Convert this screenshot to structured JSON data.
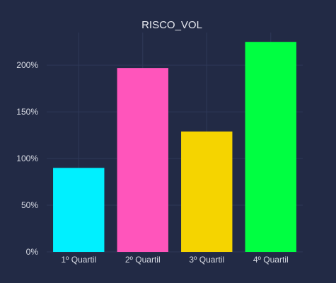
{
  "chart_data": {
    "type": "bar",
    "title": "RISCO_VOL",
    "xlabel": "",
    "ylabel": "",
    "categories": [
      "1º Quartil",
      "2º Quartil",
      "3º Quartil",
      "4º Quartil"
    ],
    "values": [
      90,
      197,
      129,
      225
    ],
    "value_format": "percent",
    "ylim": [
      0,
      235
    ],
    "yticks": [
      0,
      50,
      100,
      150,
      200
    ],
    "ytick_labels": [
      "0%",
      "50%",
      "100%",
      "150%",
      "200%"
    ],
    "grid": true,
    "colors": [
      "#00f0ff",
      "#ff55bb",
      "#f5d400",
      "#00ff41"
    ],
    "background": "#222a45",
    "grid_color": "#2e3858"
  }
}
